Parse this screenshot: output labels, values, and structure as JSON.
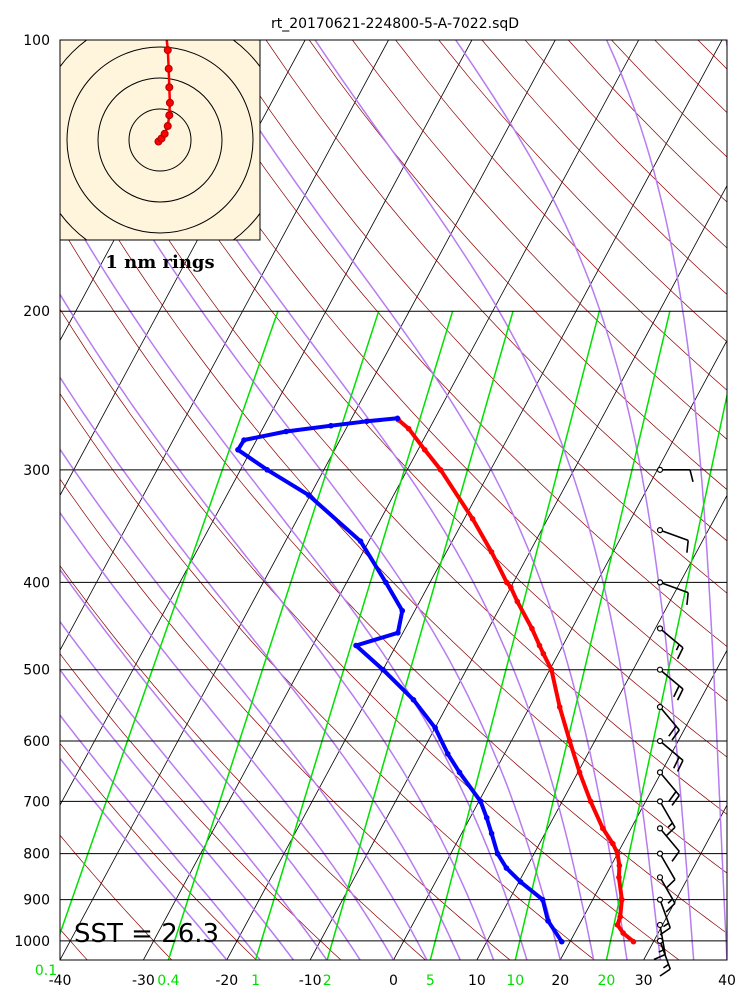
{
  "title": "rt_20170621-224800-5-A-7022.sqD",
  "colors": {
    "temperature": "#ff0000",
    "dewpoint": "#0000ff",
    "isotherm": "#000000",
    "dry_adiabat": "#8b0000",
    "moist_adiabat": "#b77cf0",
    "mixing_ratio": "#00e000",
    "hodo_bg": "#fff5dc"
  },
  "annotations": {
    "sst": "SST = 26.3",
    "hodo_rings": "1 nm rings"
  },
  "chart_data": {
    "type": "skew-t log-p sounding",
    "title": "rt_20170621-224800-5-A-7022.sqD",
    "x_axis": {
      "ticks": [
        "-40",
        "-30",
        "-20",
        "-10",
        "0",
        "10",
        "20",
        "30",
        "40"
      ],
      "range": [
        -40,
        40
      ]
    },
    "y_axis": {
      "scale": "log",
      "ticks": [
        "100",
        "200",
        "300",
        "400",
        "500",
        "600",
        "700",
        "800",
        "900",
        "1000"
      ],
      "range": [
        1050,
        100
      ]
    },
    "mixing_ratio_labels": [
      "0.1",
      "0.4",
      "1",
      "2",
      "5",
      "10",
      "20"
    ],
    "temperature": [
      {
        "p": 1002,
        "t": 27.6
      },
      {
        "p": 980,
        "t": 25.8
      },
      {
        "p": 960,
        "t": 24.6
      },
      {
        "p": 940,
        "t": 24.4
      },
      {
        "p": 900,
        "t": 23.5
      },
      {
        "p": 850,
        "t": 21.7
      },
      {
        "p": 825,
        "t": 21.0
      },
      {
        "p": 800,
        "t": 20.0
      },
      {
        "p": 780,
        "t": 18.8
      },
      {
        "p": 750,
        "t": 16.6
      },
      {
        "p": 700,
        "t": 13.4
      },
      {
        "p": 650,
        "t": 10.2
      },
      {
        "p": 600,
        "t": 7.0
      },
      {
        "p": 550,
        "t": 3.6
      },
      {
        "p": 500,
        "t": 0.2
      },
      {
        "p": 480,
        "t": -1.8
      },
      {
        "p": 470,
        "t": -2.8
      },
      {
        "p": 450,
        "t": -4.8
      },
      {
        "p": 420,
        "t": -8.3
      },
      {
        "p": 405,
        "t": -10.0
      },
      {
        "p": 400,
        "t": -10.8
      },
      {
        "p": 370,
        "t": -14.6
      },
      {
        "p": 340,
        "t": -19.0
      },
      {
        "p": 300,
        "t": -26.0
      },
      {
        "p": 285,
        "t": -29.2
      },
      {
        "p": 270,
        "t": -32.5
      },
      {
        "p": 264,
        "t": -34.3
      }
    ],
    "dewpoint": [
      {
        "p": 1002,
        "t": 19.0
      },
      {
        "p": 950,
        "t": 16.0
      },
      {
        "p": 900,
        "t": 14.0
      },
      {
        "p": 860,
        "t": 10.2
      },
      {
        "p": 830,
        "t": 7.6
      },
      {
        "p": 800,
        "t": 5.6
      },
      {
        "p": 760,
        "t": 3.6
      },
      {
        "p": 730,
        "t": 2.0
      },
      {
        "p": 700,
        "t": 0.2
      },
      {
        "p": 650,
        "t": -4.2
      },
      {
        "p": 620,
        "t": -6.8
      },
      {
        "p": 580,
        "t": -10.0
      },
      {
        "p": 540,
        "t": -14.4
      },
      {
        "p": 500,
        "t": -20.0
      },
      {
        "p": 470,
        "t": -24.8
      },
      {
        "p": 455,
        "t": -20.6
      },
      {
        "p": 430,
        "t": -21.5
      },
      {
        "p": 400,
        "t": -25.3
      },
      {
        "p": 360,
        "t": -31.0
      },
      {
        "p": 320,
        "t": -40.2
      },
      {
        "p": 300,
        "t": -46.8
      },
      {
        "p": 285,
        "t": -51.6
      },
      {
        "p": 278,
        "t": -51.5
      },
      {
        "p": 272,
        "t": -47.0
      },
      {
        "p": 268,
        "t": -42.0
      },
      {
        "p": 265,
        "t": -38.0
      },
      {
        "p": 263,
        "t": -34.5
      }
    ],
    "wind_barbs_kt": [
      {
        "p": 1000,
        "dir": 160,
        "spd": 15
      },
      {
        "p": 960,
        "dir": 170,
        "spd": 15
      },
      {
        "p": 900,
        "dir": 160,
        "spd": 15
      },
      {
        "p": 850,
        "dir": 150,
        "spd": 15
      },
      {
        "p": 800,
        "dir": 150,
        "spd": 10
      },
      {
        "p": 750,
        "dir": 140,
        "spd": 10
      },
      {
        "p": 700,
        "dir": 150,
        "spd": 15
      },
      {
        "p": 650,
        "dir": 140,
        "spd": 20
      },
      {
        "p": 600,
        "dir": 130,
        "spd": 20
      },
      {
        "p": 550,
        "dir": 140,
        "spd": 20
      },
      {
        "p": 500,
        "dir": 130,
        "spd": 20
      },
      {
        "p": 450,
        "dir": 130,
        "spd": 15
      },
      {
        "p": 400,
        "dir": 110,
        "spd": 10
      },
      {
        "p": 350,
        "dir": 110,
        "spd": 10
      },
      {
        "p": 300,
        "dir": 90,
        "spd": 10
      }
    ],
    "hodograph": {
      "ring_spacing_nm": 1,
      "ring_count": 4,
      "track_nm": [
        {
          "x": -0.05,
          "y": -0.05
        },
        {
          "x": 0.05,
          "y": 0.05
        },
        {
          "x": 0.15,
          "y": 0.2
        },
        {
          "x": 0.25,
          "y": 0.45
        },
        {
          "x": 0.3,
          "y": 0.8
        },
        {
          "x": 0.32,
          "y": 1.2
        },
        {
          "x": 0.3,
          "y": 1.7
        },
        {
          "x": 0.28,
          "y": 2.3
        },
        {
          "x": 0.25,
          "y": 2.9
        },
        {
          "x": 0.2,
          "y": 3.4
        }
      ]
    },
    "sst": 26.3
  }
}
